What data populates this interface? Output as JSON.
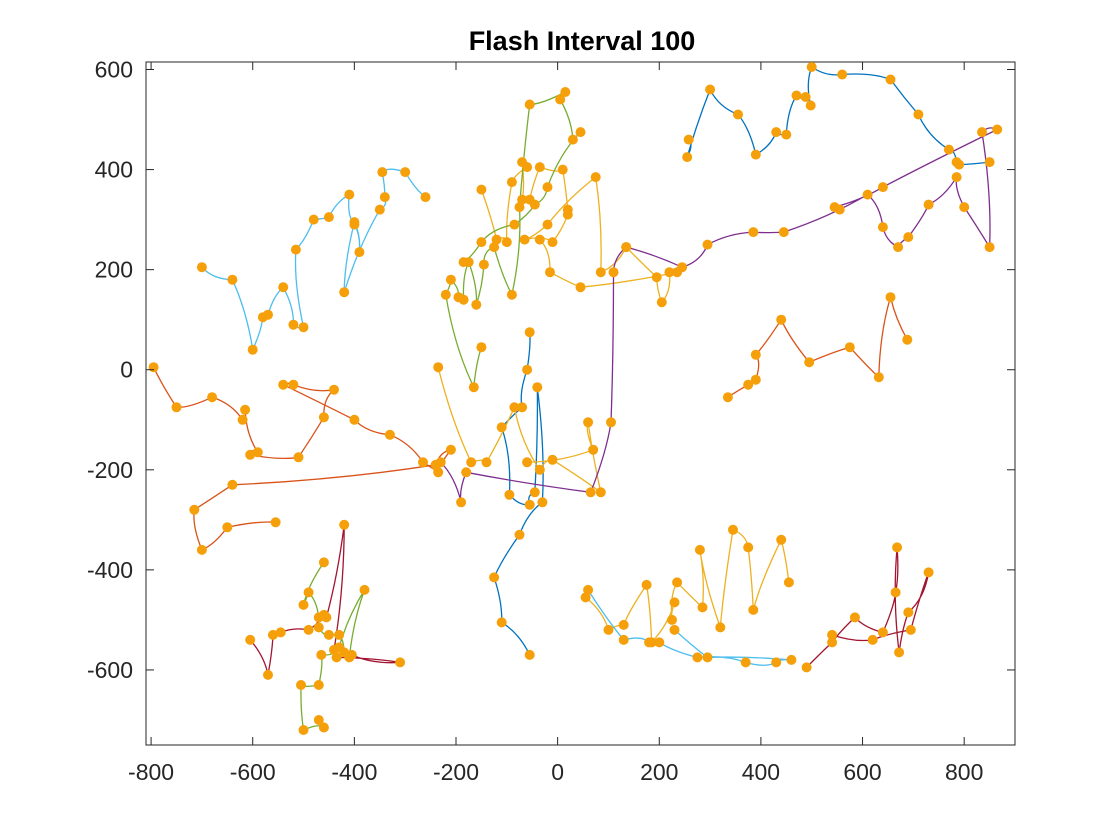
{
  "chart_data": {
    "type": "line",
    "title": "Flash Interval 100",
    "xlabel": "",
    "ylabel": "",
    "xlim": [
      -810,
      900
    ],
    "ylim": [
      -750,
      615
    ],
    "xticks": [
      -800,
      -600,
      -400,
      -200,
      0,
      200,
      400,
      600,
      800
    ],
    "yticks": [
      600,
      400,
      200,
      0,
      -200,
      -400,
      -600
    ],
    "grid": false,
    "marker_color": "#F5A00A",
    "series": [
      {
        "color": "#0072BD",
        "points": [
          [
            258,
            460
          ],
          [
            255,
            425
          ],
          [
            300,
            560
          ],
          [
            355,
            510
          ],
          [
            390,
            430
          ],
          [
            430,
            475
          ],
          [
            450,
            470
          ],
          [
            470,
            548
          ],
          [
            488,
            545
          ],
          [
            498,
            528
          ],
          [
            500,
            605
          ],
          [
            560,
            590
          ],
          [
            655,
            580
          ],
          [
            710,
            510
          ],
          [
            770,
            440
          ],
          [
            785,
            415
          ],
          [
            790,
            410
          ],
          [
            850,
            415
          ]
        ]
      },
      {
        "color": "#0072BD",
        "points": [
          [
            -55,
            75
          ],
          [
            -60,
            0
          ],
          [
            -70,
            -75
          ],
          [
            -110,
            -115
          ],
          [
            -95,
            -250
          ],
          [
            -55,
            -270
          ],
          [
            -45,
            -245
          ],
          [
            -40,
            -35
          ],
          [
            -30,
            -265
          ],
          [
            -75,
            -330
          ],
          [
            -125,
            -415
          ],
          [
            -110,
            -505
          ],
          [
            -55,
            -570
          ]
        ]
      },
      {
        "color": "#D95319",
        "points": [
          [
            -795,
            5
          ],
          [
            -750,
            -75
          ],
          [
            -680,
            -55
          ],
          [
            -620,
            -100
          ],
          [
            -615,
            -80
          ],
          [
            -590,
            -165
          ],
          [
            -605,
            -170
          ],
          [
            -510,
            -175
          ],
          [
            -460,
            -95
          ],
          [
            -440,
            -40
          ],
          [
            -520,
            -30
          ],
          [
            -540,
            -30
          ],
          [
            -400,
            -100
          ],
          [
            -330,
            -130
          ],
          [
            -265,
            -185
          ],
          [
            -235,
            -205
          ],
          [
            -210,
            -160
          ],
          [
            -240,
            -190
          ],
          [
            -640,
            -230
          ],
          [
            -715,
            -280
          ],
          [
            -700,
            -360
          ],
          [
            -650,
            -315
          ],
          [
            -555,
            -305
          ]
        ]
      },
      {
        "color": "#D95319",
        "points": [
          [
            335,
            -55
          ],
          [
            375,
            -30
          ],
          [
            390,
            -20
          ],
          [
            390,
            30
          ],
          [
            440,
            100
          ],
          [
            495,
            15
          ],
          [
            575,
            45
          ],
          [
            632,
            -15
          ],
          [
            655,
            145
          ],
          [
            688,
            60
          ]
        ]
      },
      {
        "color": "#EDB120",
        "points": [
          [
            -235,
            5
          ],
          [
            -170,
            -185
          ],
          [
            -140,
            -185
          ],
          [
            -85,
            -75
          ],
          [
            -35,
            -200
          ],
          [
            -10,
            -180
          ],
          [
            85,
            -245
          ],
          [
            60,
            -105
          ],
          [
            70,
            -160
          ],
          [
            -60,
            -185
          ]
        ]
      },
      {
        "color": "#EDB120",
        "points": [
          [
            -150,
            360
          ],
          [
            -120,
            260
          ],
          [
            -100,
            255
          ],
          [
            -90,
            375
          ],
          [
            -60,
            405
          ],
          [
            -70,
            415
          ],
          [
            -70,
            340
          ],
          [
            -55,
            340
          ],
          [
            -35,
            405
          ],
          [
            10,
            400
          ],
          [
            20,
            320
          ],
          [
            20,
            310
          ],
          [
            -10,
            255
          ],
          [
            -65,
            260
          ],
          [
            -20,
            290
          ],
          [
            75,
            385
          ],
          [
            85,
            195
          ],
          [
            135,
            245
          ],
          [
            195,
            185
          ],
          [
            205,
            135
          ],
          [
            220,
            195
          ],
          [
            235,
            195
          ],
          [
            45,
            165
          ],
          [
            -15,
            195
          ],
          [
            -35,
            260
          ]
        ]
      },
      {
        "color": "#EDB120",
        "points": [
          [
            55,
            -455
          ],
          [
            100,
            -520
          ],
          [
            130,
            -510
          ],
          [
            175,
            -430
          ],
          [
            185,
            -545
          ],
          [
            230,
            -465
          ],
          [
            225,
            -500
          ],
          [
            235,
            -425
          ],
          [
            285,
            -475
          ],
          [
            280,
            -360
          ],
          [
            320,
            -515
          ],
          [
            345,
            -320
          ],
          [
            375,
            -355
          ],
          [
            385,
            -480
          ],
          [
            440,
            -340
          ],
          [
            455,
            -425
          ]
        ]
      },
      {
        "color": "#7E2F8E",
        "points": [
          [
            -230,
            -185
          ],
          [
            -190,
            -265
          ],
          [
            -180,
            -205
          ],
          [
            65,
            -245
          ],
          [
            105,
            -105
          ],
          [
            110,
            195
          ],
          [
            135,
            245
          ],
          [
            245,
            205
          ],
          [
            295,
            250
          ],
          [
            385,
            275
          ],
          [
            445,
            275
          ],
          [
            610,
            350
          ],
          [
            640,
            285
          ],
          [
            670,
            245
          ],
          [
            690,
            265
          ],
          [
            730,
            330
          ],
          [
            785,
            385
          ],
          [
            800,
            325
          ],
          [
            850,
            245
          ],
          [
            835,
            475
          ],
          [
            865,
            480
          ],
          [
            640,
            365
          ],
          [
            545,
            325
          ],
          [
            555,
            320
          ]
        ]
      },
      {
        "color": "#77AC30",
        "points": [
          [
            -150,
            45
          ],
          [
            -165,
            -35
          ],
          [
            -220,
            150
          ],
          [
            -210,
            180
          ],
          [
            -195,
            145
          ],
          [
            -185,
            140
          ],
          [
            -175,
            215
          ],
          [
            -160,
            130
          ],
          [
            -145,
            210
          ],
          [
            -125,
            245
          ],
          [
            -90,
            150
          ],
          [
            -75,
            325
          ],
          [
            -55,
            530
          ],
          [
            15,
            555
          ],
          [
            5,
            540
          ],
          [
            30,
            460
          ],
          [
            45,
            475
          ],
          [
            -20,
            365
          ],
          [
            -45,
            330
          ],
          [
            -85,
            290
          ],
          [
            -150,
            255
          ],
          [
            -185,
            215
          ]
        ]
      },
      {
        "color": "#77AC30",
        "points": [
          [
            -460,
            -385
          ],
          [
            -500,
            -470
          ],
          [
            -490,
            -445
          ],
          [
            -470,
            -515
          ],
          [
            -450,
            -530
          ],
          [
            -430,
            -530
          ],
          [
            -420,
            -565
          ],
          [
            -410,
            -575
          ],
          [
            -380,
            -440
          ],
          [
            -430,
            -555
          ],
          [
            -465,
            -570
          ],
          [
            -470,
            -630
          ],
          [
            -505,
            -630
          ],
          [
            -500,
            -720
          ],
          [
            -460,
            -715
          ],
          [
            -470,
            -700
          ]
        ]
      },
      {
        "color": "#4DBEEE",
        "points": [
          [
            -700,
            205
          ],
          [
            -640,
            180
          ],
          [
            -600,
            40
          ],
          [
            -580,
            105
          ],
          [
            -570,
            110
          ],
          [
            -540,
            165
          ],
          [
            -520,
            90
          ],
          [
            -500,
            85
          ],
          [
            -515,
            240
          ],
          [
            -480,
            300
          ],
          [
            -450,
            305
          ],
          [
            -410,
            350
          ],
          [
            -400,
            290
          ],
          [
            -390,
            235
          ],
          [
            -400,
            295
          ],
          [
            -420,
            155
          ],
          [
            -350,
            320
          ],
          [
            -340,
            345
          ],
          [
            -345,
            395
          ],
          [
            -300,
            395
          ],
          [
            -260,
            345
          ]
        ]
      },
      {
        "color": "#4DBEEE",
        "points": [
          [
            60,
            -440
          ],
          [
            130,
            -540
          ],
          [
            180,
            -545
          ],
          [
            200,
            -545
          ],
          [
            275,
            -575
          ],
          [
            370,
            -585
          ],
          [
            430,
            -585
          ],
          [
            460,
            -580
          ],
          [
            295,
            -575
          ],
          [
            230,
            -520
          ]
        ]
      },
      {
        "color": "#A2142F",
        "points": [
          [
            -605,
            -540
          ],
          [
            -570,
            -610
          ],
          [
            -560,
            -530
          ],
          [
            -545,
            -525
          ],
          [
            -490,
            -520
          ],
          [
            -470,
            -495
          ],
          [
            -460,
            -490
          ],
          [
            -455,
            -495
          ],
          [
            -420,
            -310
          ],
          [
            -440,
            -560
          ],
          [
            -405,
            -570
          ],
          [
            -310,
            -585
          ],
          [
            -435,
            -575
          ]
        ]
      },
      {
        "color": "#A2142F",
        "points": [
          [
            490,
            -595
          ],
          [
            540,
            -545
          ],
          [
            585,
            -495
          ],
          [
            640,
            -525
          ],
          [
            665,
            -445
          ],
          [
            668,
            -355
          ],
          [
            672,
            -565
          ],
          [
            690,
            -485
          ],
          [
            730,
            -405
          ],
          [
            695,
            -520
          ],
          [
            620,
            -540
          ],
          [
            540,
            -530
          ]
        ]
      }
    ]
  }
}
